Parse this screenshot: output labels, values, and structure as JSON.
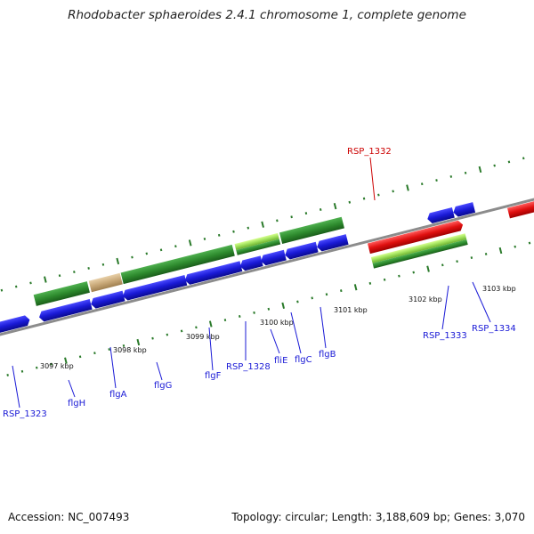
{
  "title": "Rhodobacter sphaeroides 2.4.1 chromosome 1, complete genome",
  "footer": {
    "accession": "Accession: NC_007493",
    "summary": "Topology: circular; Length: 3,188,609 bp; Genes: 3,070"
  },
  "colors": {
    "backbone": "#8c8c8c",
    "gene_blue": "#1a1ad6",
    "gene_green": "#2e8b2e",
    "gene_lightgreen": "#9ee05a",
    "gene_red": "#e01010",
    "gene_tan": "#c8a878",
    "label_blue": "#1a1ad6",
    "label_red": "#cc0000",
    "tick": "#2a7a2a"
  },
  "kbp_labels": [
    "3097 kbp",
    "3098 kbp",
    "3099 kbp",
    "3100 kbp",
    "3101 kbp",
    "3102 kbp",
    "3103 kbp"
  ],
  "gene_labels": [
    {
      "text": "RSP_1323",
      "color": "blue"
    },
    {
      "text": "flgH",
      "color": "blue"
    },
    {
      "text": "flgA",
      "color": "blue"
    },
    {
      "text": "flgG",
      "color": "blue"
    },
    {
      "text": "flgF",
      "color": "blue"
    },
    {
      "text": "RSP_1328",
      "color": "blue"
    },
    {
      "text": "fliE",
      "color": "blue"
    },
    {
      "text": "flgC",
      "color": "blue"
    },
    {
      "text": "flgB",
      "color": "blue"
    },
    {
      "text": "RSP_1332",
      "color": "red"
    },
    {
      "text": "RSP_1333",
      "color": "blue"
    },
    {
      "text": "RSP_1334",
      "color": "blue"
    }
  ]
}
